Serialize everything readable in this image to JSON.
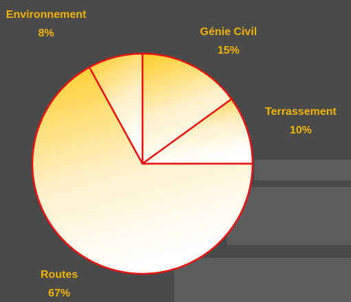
{
  "chart_data": {
    "type": "pie",
    "categories": [
      "Génie Civil",
      "Terrassement",
      "Routes",
      "Environnement"
    ],
    "values": [
      15,
      10,
      67,
      8
    ],
    "value_labels": [
      "15%",
      "10%",
      "67%",
      "8%"
    ],
    "color": "#ffcc22",
    "edge_color": "#ee1111",
    "label_color": "#f0b400"
  }
}
